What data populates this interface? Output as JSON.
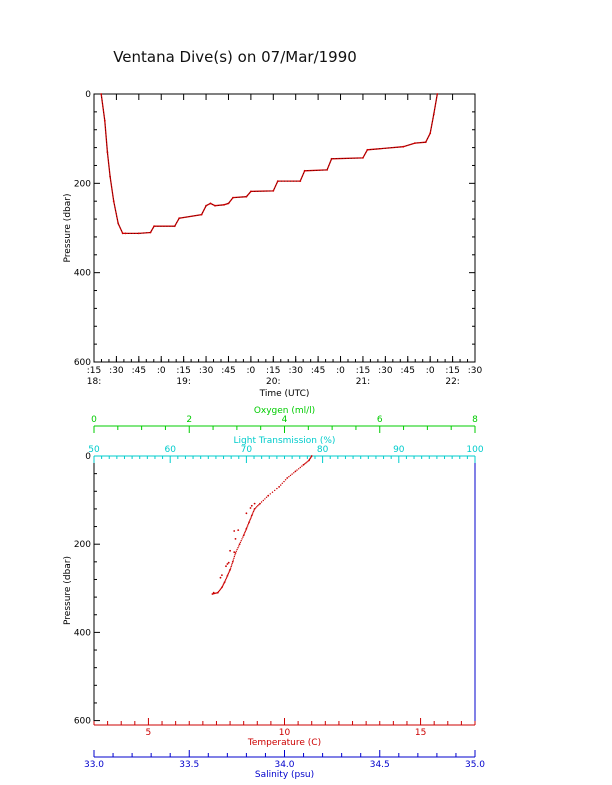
{
  "title": "Ventana Dive(s) on 07/Mar/1990",
  "chart_data": [
    {
      "type": "line",
      "xlabel": "Time (UTC)",
      "ylabel": "Pressure (dbar)",
      "xlim": [
        18.25,
        22.5
      ],
      "ylim": [
        600,
        0
      ],
      "x_ticks_top": [
        ":15",
        ":30",
        ":45",
        ":0",
        ":15",
        ":30",
        ":45",
        ":0",
        ":15",
        ":30",
        ":45",
        ":0",
        ":15",
        ":30",
        ":45",
        ":0",
        ":15",
        ":30"
      ],
      "x_ticks_bottom": [
        "18:",
        "19:",
        "20:",
        "21:",
        "22:"
      ],
      "y_ticks": [
        "0",
        "200",
        "400",
        "600"
      ],
      "series": [
        {
          "color": "#cc0000",
          "points": [
            [
              18.33,
              0
            ],
            [
              18.37,
              60
            ],
            [
              18.4,
              130
            ],
            [
              18.43,
              185
            ],
            [
              18.47,
              240
            ],
            [
              18.52,
              290
            ],
            [
              18.57,
              312
            ],
            [
              18.6,
              312
            ],
            [
              18.75,
              312
            ],
            [
              18.88,
              310
            ],
            [
              18.92,
              296
            ],
            [
              19.15,
              296
            ],
            [
              19.2,
              278
            ],
            [
              19.45,
              270
            ],
            [
              19.5,
              250
            ],
            [
              19.55,
              245
            ],
            [
              19.6,
              250
            ],
            [
              19.7,
              248
            ],
            [
              19.75,
              245
            ],
            [
              19.8,
              232
            ],
            [
              19.95,
              230
            ],
            [
              20.0,
              218
            ],
            [
              20.25,
              217
            ],
            [
              20.3,
              195
            ],
            [
              20.55,
              195
            ],
            [
              20.6,
              172
            ],
            [
              20.85,
              170
            ],
            [
              20.9,
              145
            ],
            [
              21.25,
              143
            ],
            [
              21.3,
              125
            ],
            [
              21.7,
              118
            ],
            [
              21.83,
              110
            ],
            [
              21.95,
              108
            ],
            [
              22.0,
              88
            ],
            [
              22.04,
              45
            ],
            [
              22.08,
              0
            ]
          ]
        }
      ]
    },
    {
      "type": "scatter",
      "xlabel": "Temperature (C)",
      "ylabel": "Pressure (dbar)",
      "xlim": [
        3.0,
        17.0
      ],
      "ylim": [
        610,
        0
      ],
      "x_ticks": [
        "5",
        "10",
        "15"
      ],
      "y_ticks": [
        "0",
        "200",
        "400",
        "600"
      ],
      "top_axes": [
        {
          "label": "Oxygen (ml/l)",
          "color": "#00cc00",
          "range": [
            0,
            8
          ],
          "ticks": [
            "0",
            "2",
            "4",
            "6",
            "8"
          ]
        },
        {
          "label": "Light Transmission (%)",
          "color": "#00cccc",
          "range": [
            50,
            100
          ],
          "ticks": [
            "50",
            "60",
            "70",
            "80",
            "90",
            "100"
          ]
        }
      ],
      "bottom_axis_2": {
        "label": "Salinity (psu)",
        "color": "#0000cc",
        "range": [
          33.0,
          35.0
        ],
        "ticks": [
          "33.0",
          "33.5",
          "34.0",
          "34.5",
          "35.0"
        ]
      },
      "series": [
        {
          "color": "#cc0000",
          "points": [
            [
              11.0,
              0
            ],
            [
              10.9,
              10
            ],
            [
              10.7,
              20
            ],
            [
              10.4,
              35
            ],
            [
              10.1,
              50
            ],
            [
              9.8,
              70
            ],
            [
              9.4,
              90
            ],
            [
              9.1,
              108
            ],
            [
              8.9,
              120
            ],
            [
              8.8,
              135
            ],
            [
              8.7,
              150
            ],
            [
              8.6,
              165
            ],
            [
              8.5,
              180
            ],
            [
              8.35,
              200
            ],
            [
              8.2,
              220
            ],
            [
              8.1,
              240
            ],
            [
              8.0,
              258
            ],
            [
              7.9,
              272
            ],
            [
              7.8,
              286
            ],
            [
              7.7,
              298
            ],
            [
              7.55,
              310
            ],
            [
              7.35,
              313
            ],
            [
              8.9,
              108
            ],
            [
              8.8,
              113
            ],
            [
              8.75,
              118
            ],
            [
              8.6,
              130
            ],
            [
              8.3,
              168
            ],
            [
              8.15,
              170
            ],
            [
              8.2,
              188
            ],
            [
              8.0,
              215
            ],
            [
              8.15,
              218
            ],
            [
              7.9,
              245
            ],
            [
              7.85,
              250
            ],
            [
              7.95,
              242
            ],
            [
              7.7,
              270
            ],
            [
              7.65,
              276
            ],
            [
              7.4,
              310
            ]
          ]
        }
      ]
    }
  ]
}
